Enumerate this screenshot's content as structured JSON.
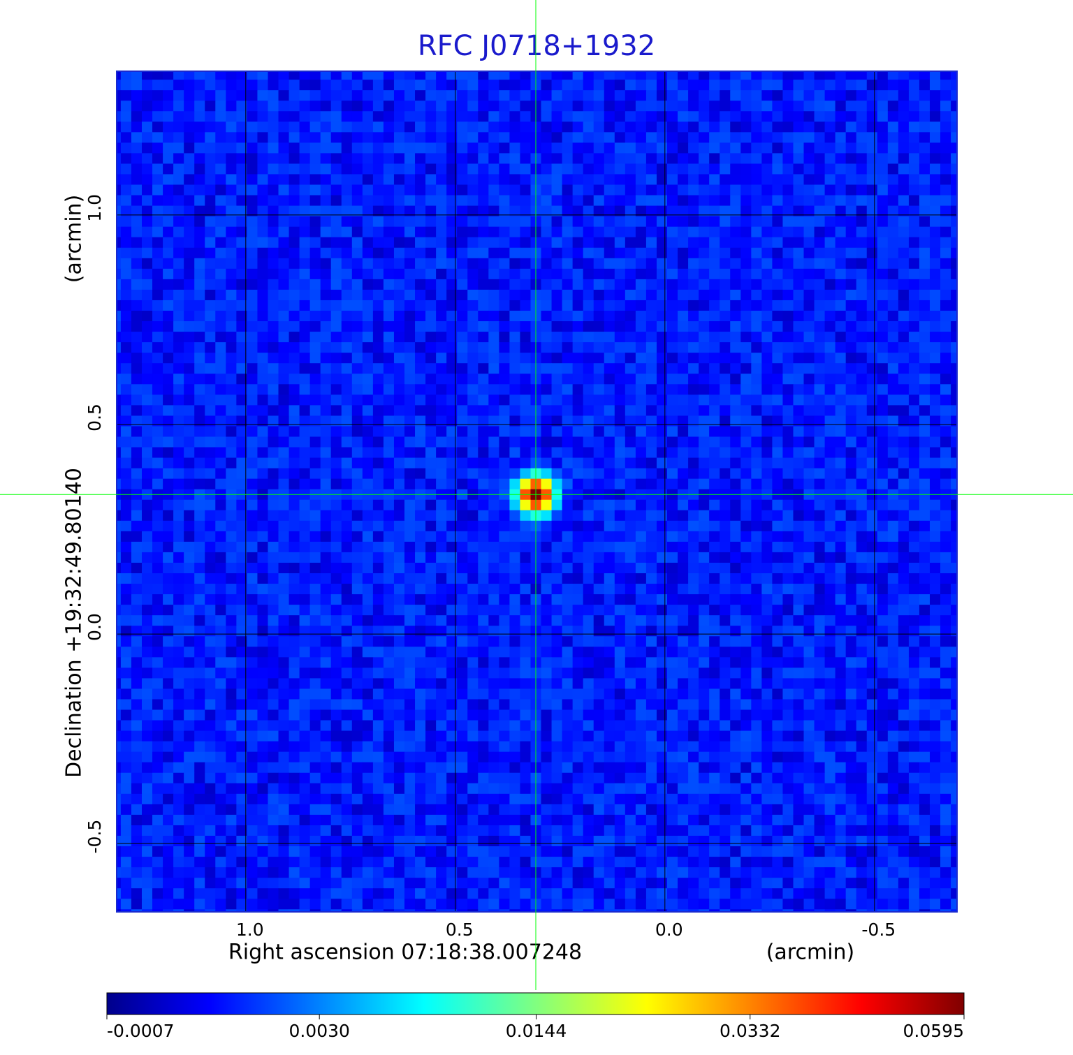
{
  "chart_data": {
    "type": "image",
    "title": "RFC J0718+1932",
    "xlabel": "Right ascension  07:18:38.007248",
    "xunit": "(arcmin)",
    "ylabel": "Declination  +19:32:49.80140",
    "yunit": "(arcmin)",
    "xlim": [
      1.308,
      -0.697
    ],
    "ylim": [
      -0.663,
      1.343
    ],
    "xticks": [
      {
        "value": 1,
        "label": "1.0"
      },
      0.5,
      {
        "value": 0,
        "label": "0.0"
      },
      -0.5
    ],
    "yticks": [
      -0.5,
      {
        "value": 0,
        "label": "0.0"
      },
      0.5,
      {
        "value": 1,
        "label": "1.0"
      }
    ],
    "grid": true,
    "source": {
      "x": 0.308,
      "y": 0.333,
      "peak": 0.0595
    },
    "crosshair_color": "#00ff00",
    "colorbar_scale": "sqrt",
    "clim": [
      -0.0007,
      0.0595
    ],
    "colorbar_ticks": [
      -0.0007,
      {
        "value": 0.003,
        "label": "0.0030"
      },
      0.0144,
      0.0332,
      0.0595
    ]
  }
}
